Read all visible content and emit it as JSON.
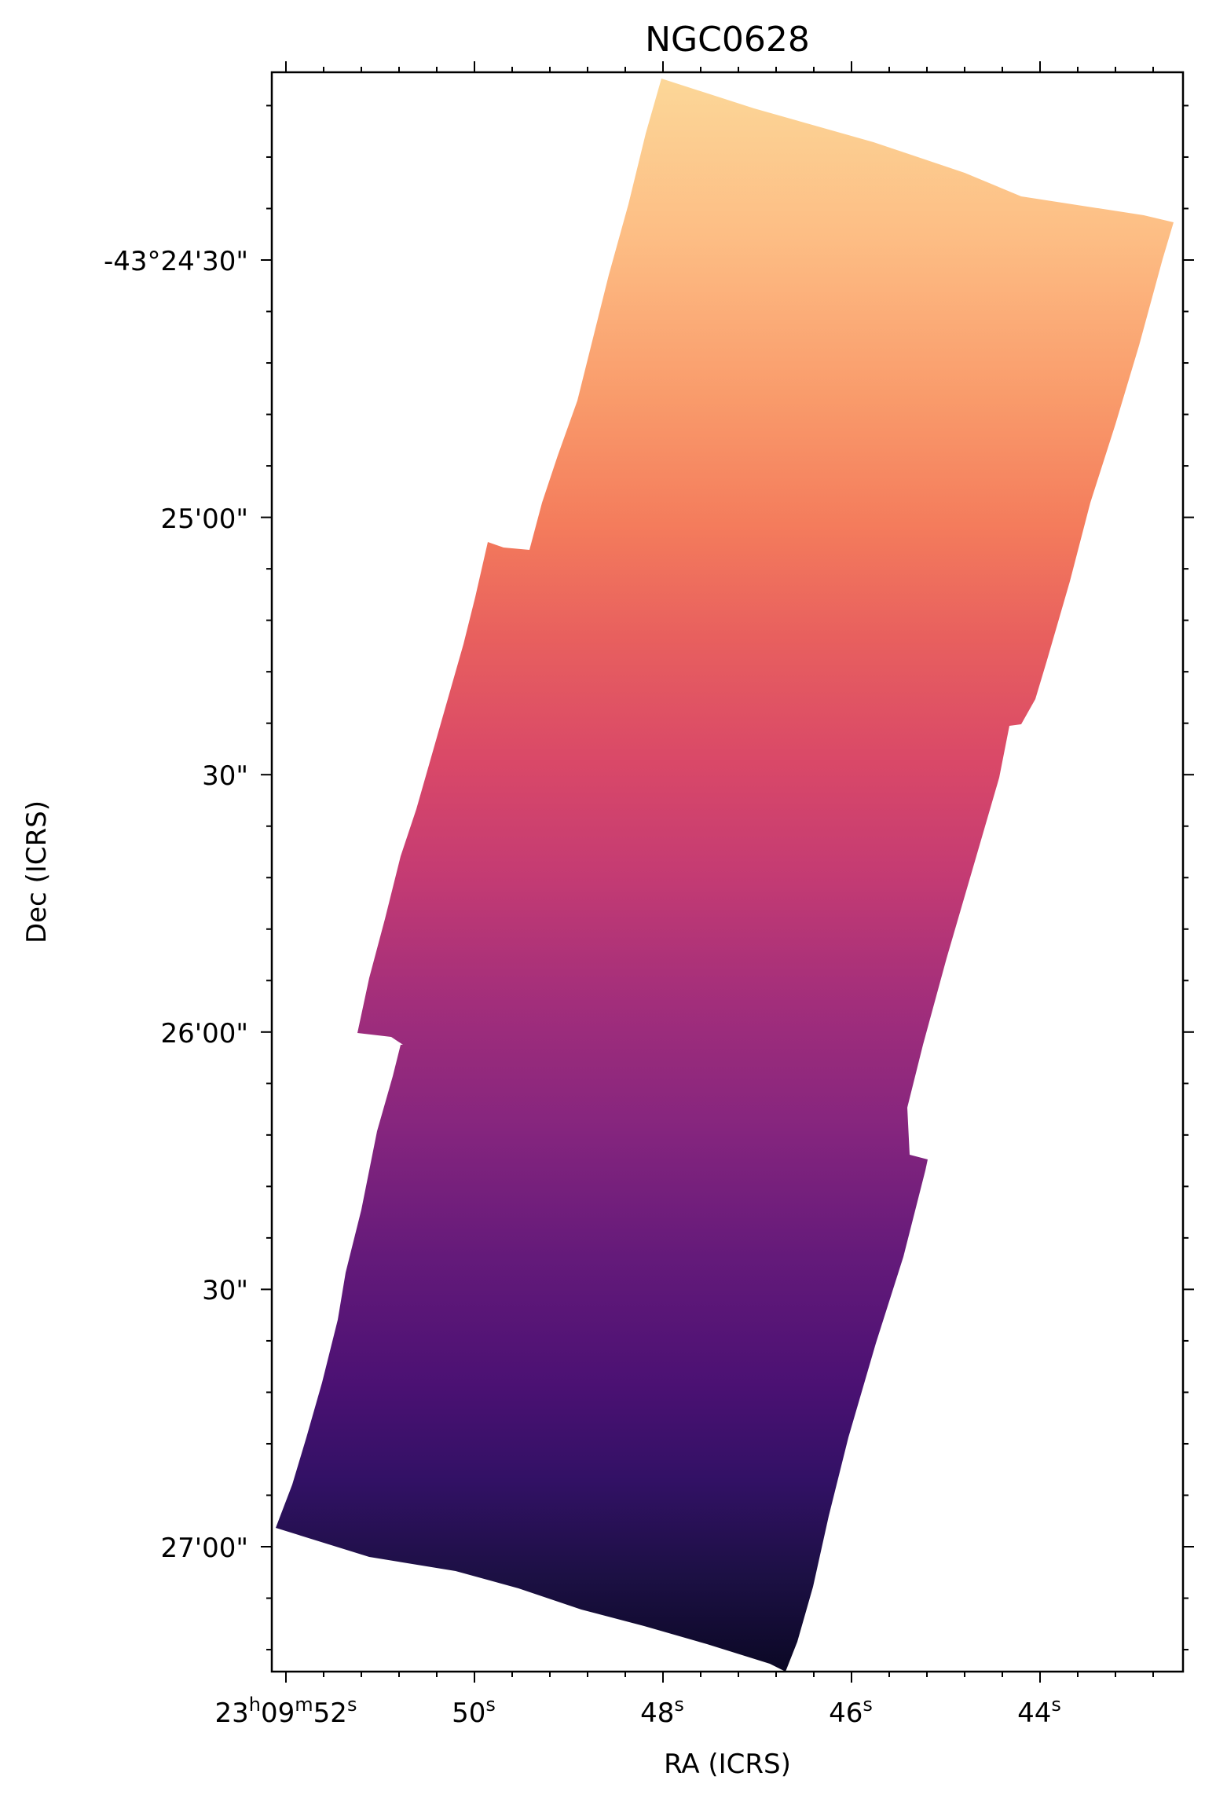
{
  "chart_data": {
    "type": "heatmap",
    "title": "NGC0628",
    "xlabel": "RA (ICRS)",
    "ylabel": "Dec (ICRS)",
    "colormap": "magma",
    "grid": false,
    "legend": "none",
    "x_axis": {
      "unit": "hms",
      "direction": "decreasing",
      "ticks": [
        {
          "value": "23h09m52s",
          "parts": [
            [
              "23",
              "h"
            ],
            [
              "09",
              "m"
            ],
            [
              "52",
              "s"
            ]
          ]
        },
        {
          "value": "50s",
          "parts": [
            [
              "50",
              "s"
            ]
          ]
        },
        {
          "value": "48s",
          "parts": [
            [
              "48",
              "s"
            ]
          ]
        },
        {
          "value": "46s",
          "parts": [
            [
              "46",
              "s"
            ]
          ]
        },
        {
          "value": "44s",
          "parts": [
            [
              "44",
              "s"
            ]
          ]
        }
      ]
    },
    "y_axis": {
      "unit": "dms",
      "ticks": [
        {
          "value": "-43°24'30\"",
          "label": "-43°24'30\""
        },
        {
          "value": "-43°25'00\"",
          "label": "25'00\""
        },
        {
          "value": "-43°25'30\"",
          "label": "30\""
        },
        {
          "value": "-43°26'00\"",
          "label": "26'00\""
        },
        {
          "value": "-43°26'30\"",
          "label": "30\""
        },
        {
          "value": "-43°27'00\"",
          "label": "27'00\""
        }
      ]
    },
    "color_gradient": {
      "direction": "north-to-south",
      "top_color": "#fcd495",
      "bottom_color": "#0c0826"
    }
  }
}
